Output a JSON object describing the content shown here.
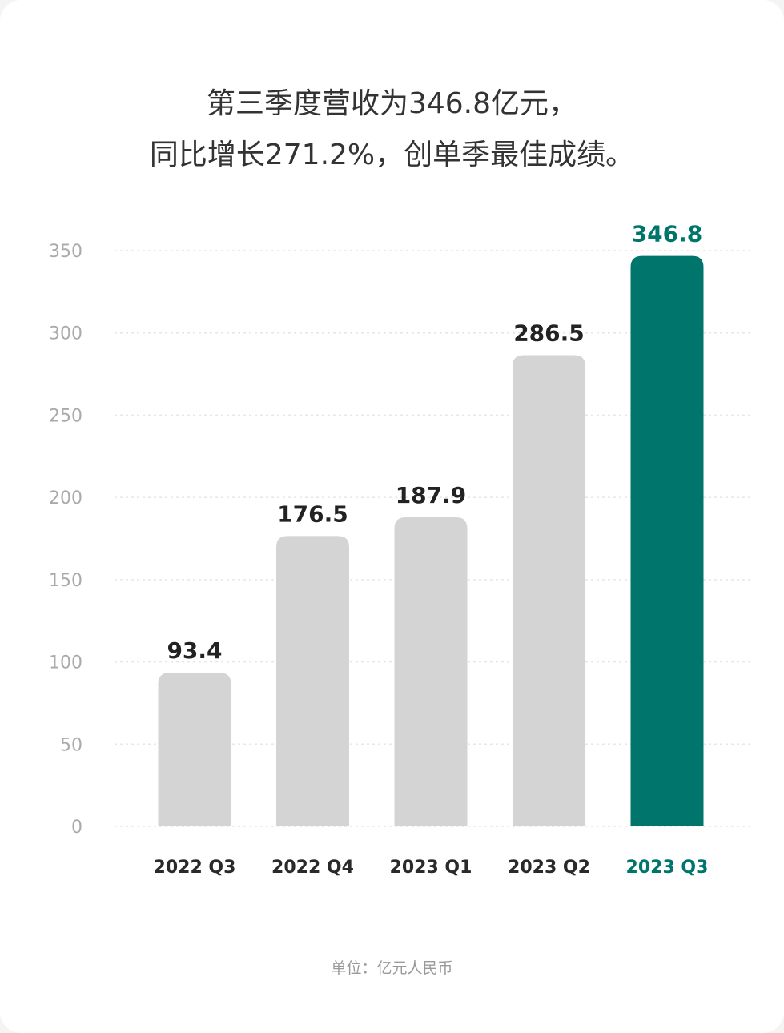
{
  "headline": {
    "title": "第三季度营收为346.8亿元，",
    "subtitle": "同比增长271.2%，创单季最佳成绩。"
  },
  "unit_note": "单位：亿元人民币",
  "colors": {
    "bar": "#d4d4d4",
    "highlight": "#00756b",
    "value_label": "#222222",
    "tick_label": "#aaaaaa",
    "grid": "#e6e6e6"
  },
  "chart_data": {
    "type": "bar",
    "categories": [
      "2022 Q3",
      "2022 Q4",
      "2023 Q1",
      "2023 Q2",
      "2023 Q3"
    ],
    "values": [
      93.4,
      176.5,
      187.9,
      286.5,
      346.8
    ],
    "value_labels": [
      "93.4",
      "176.5",
      "187.9",
      "286.5",
      "346.8"
    ],
    "highlight_index": 4,
    "yticks": [
      "0",
      "50",
      "100",
      "150",
      "200",
      "250",
      "300",
      "350"
    ],
    "ylim": [
      0,
      350
    ],
    "grid": true,
    "grid_style": "dashed",
    "xlabel": "",
    "ylabel": ""
  }
}
